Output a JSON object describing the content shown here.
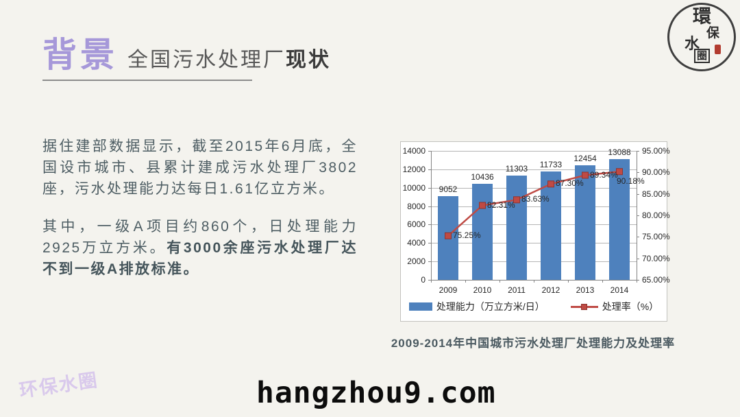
{
  "slide": {
    "title": "背景",
    "subtitle_regular": "全国污水处理厂",
    "subtitle_bold": "现状",
    "paragraph1": "据住建部数据显示，截至2015年6月底，全国设市城市、县累计建成污水处理厂3802座，污水处理能力达每日1.61亿立方米。",
    "paragraph2_regular": "其中，一级A项目约860个，日处理能力2925万立方米。",
    "paragraph2_bold": "有3000余座污水处理厂达不到一级A排放标准。",
    "watermark": "环保水圈",
    "footer_url": "hangzhou9.com",
    "logo_chars": [
      "環",
      "保",
      "水",
      "圈"
    ]
  },
  "chart_data": {
    "type": "combo-bar-line",
    "title": "2009-2014年中国城市污水处理厂处理能力及处理率",
    "categories": [
      "2009",
      "2010",
      "2011",
      "2012",
      "2013",
      "2014"
    ],
    "series": [
      {
        "name": "处理能力（万立方米/日）",
        "type": "bar",
        "axis": "left",
        "values": [
          9052,
          10436,
          11303,
          11733,
          12454,
          13088
        ],
        "color": "#4e81bd"
      },
      {
        "name": "处理率（%）",
        "type": "line",
        "axis": "right",
        "values": [
          75.25,
          82.31,
          83.63,
          87.3,
          89.34,
          90.18
        ],
        "color": "#bf4a44"
      }
    ],
    "bar_labels": [
      "9052",
      "10436",
      "11303",
      "11733",
      "12454",
      "13088"
    ],
    "line_labels": [
      "75.25%",
      "82.31%",
      "83.63%",
      "87.30%",
      "89.34%",
      "90.18%"
    ],
    "left_axis": {
      "min": 0,
      "max": 14000,
      "step": 2000,
      "ticks": [
        "14000",
        "12000",
        "10000",
        "8000",
        "6000",
        "4000",
        "2000",
        "0"
      ]
    },
    "right_axis": {
      "min": 65,
      "max": 95,
      "step": 5,
      "ticks": [
        "95.00%",
        "90.00%",
        "85.00%",
        "80.00%",
        "75.00%",
        "70.00%",
        "65.00%"
      ]
    },
    "grid": true,
    "legend_position": "bottom",
    "legend": [
      "处理能力（万立方米/日）",
      "处理率（%）"
    ]
  },
  "colors": {
    "background": "#f4f3ee",
    "title_accent": "#a698d9",
    "body_text": "#4d5d63",
    "bar": "#4e81bd",
    "line": "#bf4a44",
    "watermark": "#d9c9ec",
    "seal_red": "#b23c30"
  }
}
